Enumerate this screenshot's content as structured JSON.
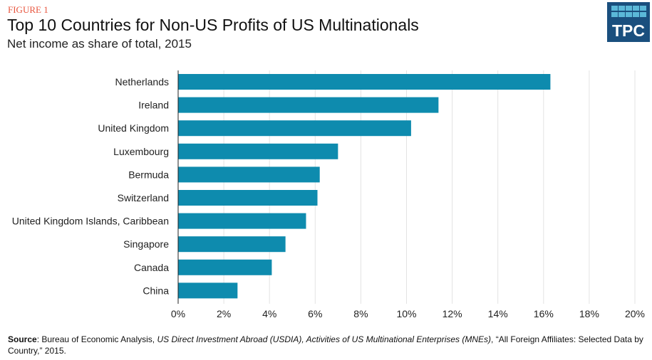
{
  "figure_label": "FIGURE 1",
  "logo_text": "TPC",
  "chart_data": {
    "type": "bar",
    "orientation": "horizontal",
    "title": "Top 10 Countries for Non-US Profits of US Multinationals",
    "subtitle": "Net income as share of total, 2015",
    "categories": [
      "Netherlands",
      "Ireland",
      "United Kingdom",
      "Luxembourg",
      "Bermuda",
      "Switzerland",
      "United Kingdom Islands, Caribbean",
      "Singapore",
      "Canada",
      "China"
    ],
    "values": [
      16.3,
      11.4,
      10.2,
      7.0,
      6.2,
      6.1,
      5.6,
      4.7,
      4.1,
      2.6
    ],
    "xlim": [
      0,
      20
    ],
    "xticks": [
      "0%",
      "2%",
      "4%",
      "6%",
      "8%",
      "10%",
      "12%",
      "14%",
      "16%",
      "18%",
      "20%"
    ],
    "grid": true,
    "bar_color": "#0e8bae"
  },
  "source": {
    "label": "Source",
    "text": ": Bureau of Economic Analysis, ",
    "italic1": "US Direct Investment Abroad (USDIA), Activities of US Multinational Enterprises (MNEs)",
    "text2": ", “All Foreign Affiliates: Selected Data by Country,” 2015."
  }
}
